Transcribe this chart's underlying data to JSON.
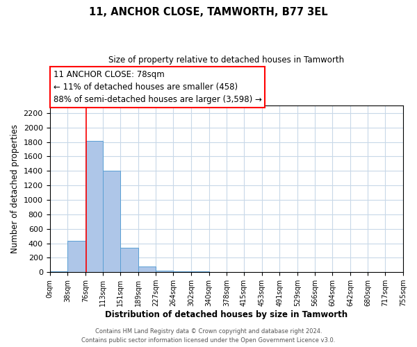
{
  "title": "11, ANCHOR CLOSE, TAMWORTH, B77 3EL",
  "subtitle": "Size of property relative to detached houses in Tamworth",
  "xlabel": "Distribution of detached houses by size in Tamworth",
  "ylabel": "Number of detached properties",
  "bar_color": "#aec6e8",
  "bar_edge_color": "#5a9fd4",
  "bin_edges": [
    0,
    38,
    76,
    113,
    151,
    189,
    227,
    264,
    302,
    340,
    378,
    415,
    453,
    491,
    529,
    566,
    604,
    642,
    680,
    717,
    755
  ],
  "bar_heights": [
    15,
    430,
    1820,
    1400,
    340,
    75,
    25,
    10,
    10,
    0,
    0,
    0,
    0,
    0,
    0,
    0,
    0,
    0,
    0,
    0
  ],
  "red_line_x": 78,
  "ylim": [
    0,
    2300
  ],
  "yticks": [
    0,
    200,
    400,
    600,
    800,
    1000,
    1200,
    1400,
    1600,
    1800,
    2000,
    2200
  ],
  "xlim": [
    0,
    755
  ],
  "annotation_title": "11 ANCHOR CLOSE: 78sqm",
  "annotation_line1": "← 11% of detached houses are smaller (458)",
  "annotation_line2": "88% of semi-detached houses are larger (3,598) →",
  "footer_line1": "Contains HM Land Registry data © Crown copyright and database right 2024.",
  "footer_line2": "Contains public sector information licensed under the Open Government Licence v3.0.",
  "tick_labels": [
    "0sqm",
    "38sqm",
    "76sqm",
    "113sqm",
    "151sqm",
    "189sqm",
    "227sqm",
    "264sqm",
    "302sqm",
    "340sqm",
    "378sqm",
    "415sqm",
    "453sqm",
    "491sqm",
    "529sqm",
    "566sqm",
    "604sqm",
    "642sqm",
    "680sqm",
    "717sqm",
    "755sqm"
  ],
  "background_color": "#ffffff",
  "grid_color": "#c8d8e8"
}
